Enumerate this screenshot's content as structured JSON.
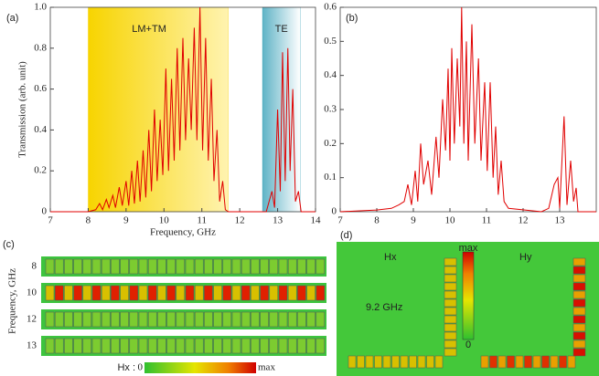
{
  "chart_data": [
    {
      "type": "line",
      "panel_label": "(a)",
      "y_label": "Transmission (arb. unit)",
      "x_label": "Frequency, GHz",
      "xlim": [
        7,
        14
      ],
      "xticks": [
        7,
        8,
        9,
        10,
        11,
        12,
        13,
        14
      ],
      "ylim": [
        0,
        1.0
      ],
      "yticks": [
        0,
        0.2,
        0.4,
        0.6,
        0.8,
        {
          "value": 1.0,
          "label": "1.0"
        }
      ],
      "bands": [
        {
          "label": "LM+TM",
          "range": [
            8,
            11.7
          ],
          "color": "#f5d000"
        },
        {
          "label": "TE",
          "range": [
            12.6,
            13.6
          ],
          "color": "#2a9ab0"
        }
      ],
      "series": [
        {
          "color": "#e00000",
          "x": [
            7,
            8,
            8.2,
            8.3,
            8.38,
            8.48,
            8.55,
            8.65,
            8.72,
            8.82,
            8.9,
            9.0,
            9.07,
            9.15,
            9.22,
            9.3,
            9.37,
            9.45,
            9.52,
            9.6,
            9.67,
            9.75,
            9.82,
            9.9,
            9.97,
            10.05,
            10.12,
            10.2,
            10.27,
            10.35,
            10.42,
            10.5,
            10.57,
            10.65,
            10.72,
            10.8,
            10.87,
            10.95,
            11.02,
            11.1,
            11.17,
            11.25,
            11.32,
            11.4,
            11.47,
            11.55,
            11.62,
            11.7,
            12.7,
            12.85,
            12.92,
            13.0,
            13.07,
            13.13,
            13.2,
            13.27,
            13.33,
            13.4,
            13.47,
            13.55,
            13.62,
            14
          ],
          "values": [
            0,
            0,
            0.01,
            0.04,
            0.01,
            0.06,
            0.02,
            0.08,
            0.02,
            0.12,
            0.03,
            0.15,
            0.03,
            0.2,
            0.04,
            0.25,
            0.05,
            0.3,
            0.07,
            0.4,
            0.1,
            0.5,
            0.15,
            0.45,
            0.18,
            0.7,
            0.2,
            0.65,
            0.25,
            0.8,
            0.3,
            0.85,
            0.35,
            0.75,
            0.4,
            0.9,
            0.35,
            1.0,
            0.3,
            0.85,
            0.25,
            0.65,
            0.15,
            0.4,
            0.05,
            0.15,
            0.01,
            0,
            0,
            0.1,
            0.02,
            0.5,
            0.1,
            0.78,
            0.15,
            0.8,
            0.2,
            0.6,
            0.05,
            0.1,
            0,
            0
          ]
        }
      ]
    },
    {
      "type": "line",
      "panel_label": "(b)",
      "xlim": [
        7,
        14
      ],
      "xticks": [
        7,
        8,
        9,
        10,
        11,
        12,
        13
      ],
      "ylim": [
        0,
        0.6
      ],
      "yticks": [
        0,
        0.1,
        0.2,
        0.3,
        0.4,
        0.5,
        0.6
      ],
      "series": [
        {
          "color": "#e00000",
          "x": [
            7,
            8,
            8.4,
            8.6,
            8.75,
            8.85,
            8.95,
            9.05,
            9.12,
            9.2,
            9.28,
            9.4,
            9.5,
            9.62,
            9.7,
            9.8,
            9.88,
            9.95,
            10.0,
            10.05,
            10.12,
            10.2,
            10.27,
            10.32,
            10.38,
            10.45,
            10.5,
            10.6,
            10.68,
            10.78,
            10.85,
            10.95,
            11.02,
            11.1,
            11.18,
            11.25,
            11.32,
            11.4,
            11.48,
            11.6,
            12.5,
            12.7,
            12.85,
            12.95,
            13.0,
            13.12,
            13.2,
            13.3,
            13.38,
            13.45,
            13.5,
            14
          ],
          "values": [
            0,
            0.005,
            0.01,
            0.02,
            0.03,
            0.08,
            0.02,
            0.12,
            0.03,
            0.2,
            0.08,
            0.15,
            0.05,
            0.22,
            0.1,
            0.33,
            0.18,
            0.42,
            0.15,
            0.48,
            0.2,
            0.45,
            0.25,
            0.6,
            0.2,
            0.5,
            0.15,
            0.55,
            0.2,
            0.45,
            0.15,
            0.38,
            0.12,
            0.38,
            0.1,
            0.25,
            0.05,
            0.15,
            0.03,
            0.01,
            0,
            0.01,
            0.08,
            0.1,
            0.01,
            0.28,
            0.02,
            0.15,
            0.03,
            0.07,
            0,
            0
          ]
        }
      ]
    }
  ],
  "field_maps": {
    "c": {
      "panel_label": "(c)",
      "y_label": "Frequency, GHz",
      "rows": [
        "8",
        "10",
        "12",
        "13"
      ],
      "colorbar": {
        "title": "Hx :",
        "min": "0",
        "max": "max"
      }
    },
    "d": {
      "panel_label": "(d)",
      "left_label": "Hx",
      "right_label": "Hy",
      "frequency": "9.2 GHz",
      "colorbar": {
        "max": "max",
        "min": "0"
      }
    }
  }
}
